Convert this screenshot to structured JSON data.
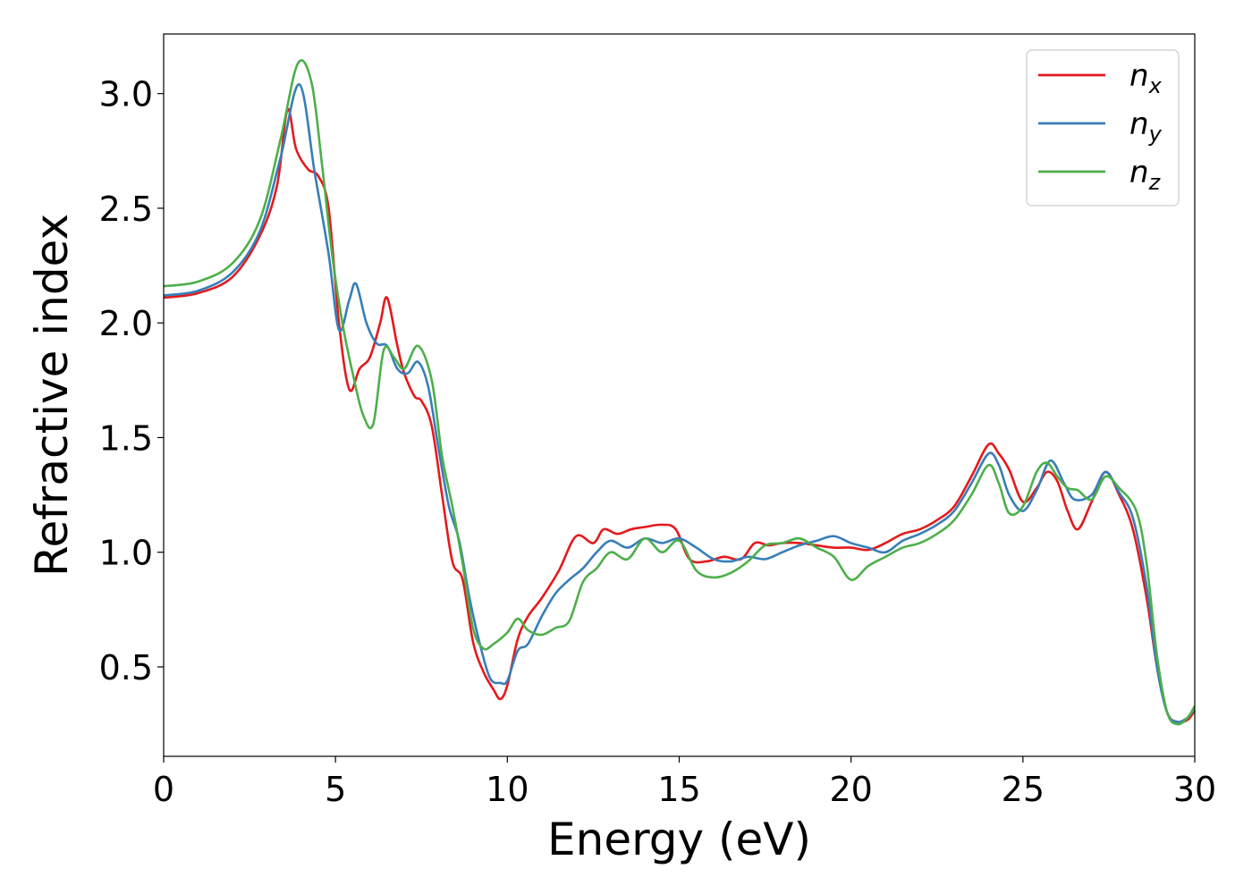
{
  "chart_data": {
    "type": "line",
    "title": "",
    "xlabel": "Energy (eV)",
    "ylabel": "Refractive index",
    "xlim": [
      0,
      30
    ],
    "ylim": [
      0.11,
      3.26
    ],
    "xticks": [
      0,
      5,
      10,
      15,
      20,
      25,
      30
    ],
    "xtick_labels": [
      "0",
      "5",
      "10",
      "15",
      "20",
      "25",
      "30"
    ],
    "yticks": [
      0.5,
      1.0,
      1.5,
      2.0,
      2.5,
      3.0
    ],
    "ytick_labels": [
      "0.5",
      "1.0",
      "1.5",
      "2.0",
      "2.5",
      "3.0"
    ],
    "grid": false,
    "legend_position": "top-right",
    "series": [
      {
        "name": "n_x",
        "label_base": "n",
        "label_sub": "x",
        "color": "#e41a1c",
        "points": [
          [
            0,
            2.11
          ],
          [
            1,
            2.13
          ],
          [
            2,
            2.2
          ],
          [
            2.8,
            2.38
          ],
          [
            3.3,
            2.6
          ],
          [
            3.6,
            2.93
          ],
          [
            3.85,
            2.76
          ],
          [
            4.2,
            2.67
          ],
          [
            4.5,
            2.64
          ],
          [
            4.8,
            2.5
          ],
          [
            5.1,
            2.0
          ],
          [
            5.4,
            1.71
          ],
          [
            5.7,
            1.8
          ],
          [
            6.0,
            1.85
          ],
          [
            6.3,
            2.0
          ],
          [
            6.5,
            2.11
          ],
          [
            6.8,
            1.9
          ],
          [
            7.0,
            1.78
          ],
          [
            7.3,
            1.68
          ],
          [
            7.5,
            1.66
          ],
          [
            7.8,
            1.55
          ],
          [
            8.1,
            1.25
          ],
          [
            8.4,
            0.96
          ],
          [
            8.7,
            0.88
          ],
          [
            9.0,
            0.61
          ],
          [
            9.3,
            0.48
          ],
          [
            9.6,
            0.4
          ],
          [
            9.8,
            0.36
          ],
          [
            10.0,
            0.42
          ],
          [
            10.3,
            0.62
          ],
          [
            10.6,
            0.72
          ],
          [
            11.0,
            0.8
          ],
          [
            11.5,
            0.92
          ],
          [
            12.0,
            1.07
          ],
          [
            12.5,
            1.04
          ],
          [
            12.8,
            1.1
          ],
          [
            13.2,
            1.08
          ],
          [
            13.6,
            1.1
          ],
          [
            14.0,
            1.11
          ],
          [
            14.5,
            1.12
          ],
          [
            14.9,
            1.1
          ],
          [
            15.3,
            0.97
          ],
          [
            15.8,
            0.96
          ],
          [
            16.3,
            0.98
          ],
          [
            16.8,
            0.97
          ],
          [
            17.2,
            1.04
          ],
          [
            17.6,
            1.03
          ],
          [
            18.0,
            1.04
          ],
          [
            18.5,
            1.04
          ],
          [
            19.0,
            1.03
          ],
          [
            19.5,
            1.02
          ],
          [
            20.0,
            1.02
          ],
          [
            20.5,
            1.01
          ],
          [
            21.0,
            1.04
          ],
          [
            21.5,
            1.08
          ],
          [
            22.0,
            1.1
          ],
          [
            22.5,
            1.14
          ],
          [
            23.0,
            1.2
          ],
          [
            23.5,
            1.33
          ],
          [
            24.0,
            1.47
          ],
          [
            24.3,
            1.43
          ],
          [
            24.6,
            1.36
          ],
          [
            25.0,
            1.22
          ],
          [
            25.4,
            1.28
          ],
          [
            25.7,
            1.35
          ],
          [
            26.0,
            1.31
          ],
          [
            26.3,
            1.18
          ],
          [
            26.6,
            1.1
          ],
          [
            27.0,
            1.22
          ],
          [
            27.4,
            1.35
          ],
          [
            27.8,
            1.25
          ],
          [
            28.2,
            1.1
          ],
          [
            28.6,
            0.8
          ],
          [
            28.9,
            0.5
          ],
          [
            29.2,
            0.3
          ],
          [
            29.5,
            0.26
          ],
          [
            29.8,
            0.27
          ],
          [
            30,
            0.31
          ]
        ]
      },
      {
        "name": "n_y",
        "label_base": "n",
        "label_sub": "y",
        "color": "#377eb8",
        "points": [
          [
            0,
            2.12
          ],
          [
            1,
            2.14
          ],
          [
            2,
            2.22
          ],
          [
            2.8,
            2.4
          ],
          [
            3.4,
            2.72
          ],
          [
            3.95,
            3.04
          ],
          [
            4.4,
            2.65
          ],
          [
            4.8,
            2.3
          ],
          [
            5.1,
            1.97
          ],
          [
            5.4,
            2.1
          ],
          [
            5.6,
            2.17
          ],
          [
            5.9,
            2.0
          ],
          [
            6.2,
            1.91
          ],
          [
            6.5,
            1.9
          ],
          [
            6.8,
            1.8
          ],
          [
            7.1,
            1.78
          ],
          [
            7.4,
            1.83
          ],
          [
            7.7,
            1.72
          ],
          [
            8.0,
            1.45
          ],
          [
            8.3,
            1.2
          ],
          [
            8.6,
            1.05
          ],
          [
            8.9,
            0.8
          ],
          [
            9.2,
            0.6
          ],
          [
            9.5,
            0.45
          ],
          [
            9.8,
            0.43
          ],
          [
            10.0,
            0.44
          ],
          [
            10.3,
            0.57
          ],
          [
            10.6,
            0.6
          ],
          [
            11.0,
            0.72
          ],
          [
            11.4,
            0.82
          ],
          [
            11.8,
            0.88
          ],
          [
            12.2,
            0.93
          ],
          [
            12.6,
            1.0
          ],
          [
            13.0,
            1.05
          ],
          [
            13.5,
            1.02
          ],
          [
            14.0,
            1.06
          ],
          [
            14.5,
            1.04
          ],
          [
            15.0,
            1.06
          ],
          [
            15.5,
            1.02
          ],
          [
            16.0,
            0.97
          ],
          [
            16.5,
            0.96
          ],
          [
            17.0,
            0.98
          ],
          [
            17.5,
            0.97
          ],
          [
            18.0,
            1.0
          ],
          [
            18.5,
            1.03
          ],
          [
            19.0,
            1.05
          ],
          [
            19.5,
            1.07
          ],
          [
            20.0,
            1.04
          ],
          [
            20.5,
            1.02
          ],
          [
            21.0,
            1.0
          ],
          [
            21.5,
            1.05
          ],
          [
            22.0,
            1.08
          ],
          [
            22.5,
            1.12
          ],
          [
            23.0,
            1.18
          ],
          [
            23.5,
            1.3
          ],
          [
            24.0,
            1.43
          ],
          [
            24.3,
            1.38
          ],
          [
            24.6,
            1.25
          ],
          [
            25.0,
            1.18
          ],
          [
            25.4,
            1.27
          ],
          [
            25.8,
            1.4
          ],
          [
            26.2,
            1.3
          ],
          [
            26.5,
            1.23
          ],
          [
            27.0,
            1.25
          ],
          [
            27.4,
            1.35
          ],
          [
            27.8,
            1.26
          ],
          [
            28.2,
            1.15
          ],
          [
            28.6,
            0.85
          ],
          [
            28.9,
            0.5
          ],
          [
            29.2,
            0.3
          ],
          [
            29.5,
            0.26
          ],
          [
            29.8,
            0.28
          ],
          [
            30,
            0.32
          ]
        ]
      },
      {
        "name": "n_z",
        "label_base": "n",
        "label_sub": "z",
        "color": "#4daf4a",
        "points": [
          [
            0,
            2.16
          ],
          [
            1,
            2.18
          ],
          [
            2,
            2.26
          ],
          [
            2.8,
            2.45
          ],
          [
            3.4,
            2.8
          ],
          [
            3.9,
            3.13
          ],
          [
            4.3,
            3.05
          ],
          [
            4.6,
            2.7
          ],
          [
            4.9,
            2.3
          ],
          [
            5.2,
            2.0
          ],
          [
            5.5,
            1.78
          ],
          [
            5.8,
            1.6
          ],
          [
            6.1,
            1.56
          ],
          [
            6.4,
            1.88
          ],
          [
            6.7,
            1.85
          ],
          [
            7.0,
            1.8
          ],
          [
            7.4,
            1.9
          ],
          [
            7.8,
            1.75
          ],
          [
            8.1,
            1.42
          ],
          [
            8.4,
            1.2
          ],
          [
            8.7,
            0.95
          ],
          [
            9.0,
            0.67
          ],
          [
            9.3,
            0.58
          ],
          [
            9.6,
            0.6
          ],
          [
            10.0,
            0.65
          ],
          [
            10.3,
            0.71
          ],
          [
            10.6,
            0.66
          ],
          [
            11.0,
            0.64
          ],
          [
            11.4,
            0.67
          ],
          [
            11.8,
            0.7
          ],
          [
            12.2,
            0.87
          ],
          [
            12.6,
            0.93
          ],
          [
            13.0,
            1.0
          ],
          [
            13.5,
            0.97
          ],
          [
            14.0,
            1.06
          ],
          [
            14.5,
            1.0
          ],
          [
            15.0,
            1.05
          ],
          [
            15.5,
            0.92
          ],
          [
            16.0,
            0.89
          ],
          [
            16.5,
            0.91
          ],
          [
            17.0,
            0.96
          ],
          [
            17.5,
            1.03
          ],
          [
            18.0,
            1.04
          ],
          [
            18.5,
            1.06
          ],
          [
            19.0,
            1.02
          ],
          [
            19.5,
            0.98
          ],
          [
            20.0,
            0.88
          ],
          [
            20.5,
            0.94
          ],
          [
            21.0,
            0.98
          ],
          [
            21.5,
            1.02
          ],
          [
            22.0,
            1.04
          ],
          [
            22.5,
            1.08
          ],
          [
            23.0,
            1.14
          ],
          [
            23.5,
            1.25
          ],
          [
            24.0,
            1.38
          ],
          [
            24.3,
            1.3
          ],
          [
            24.6,
            1.17
          ],
          [
            25.0,
            1.2
          ],
          [
            25.4,
            1.35
          ],
          [
            25.7,
            1.39
          ],
          [
            26.0,
            1.33
          ],
          [
            26.3,
            1.28
          ],
          [
            26.6,
            1.27
          ],
          [
            27.0,
            1.23
          ],
          [
            27.4,
            1.33
          ],
          [
            27.8,
            1.28
          ],
          [
            28.3,
            1.18
          ],
          [
            28.6,
            0.95
          ],
          [
            28.9,
            0.55
          ],
          [
            29.2,
            0.3
          ],
          [
            29.5,
            0.25
          ],
          [
            29.8,
            0.28
          ],
          [
            30,
            0.33
          ]
        ]
      }
    ]
  }
}
